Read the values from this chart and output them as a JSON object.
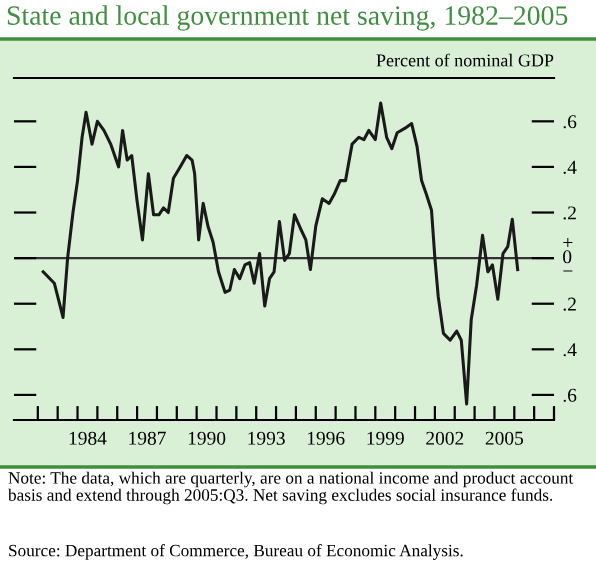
{
  "chart_data": {
    "type": "line",
    "title": "State and local government net saving, 1982–2005",
    "ylabel": "Percent of nominal GDP",
    "x": [
      1981.77,
      1982.33,
      1982.77,
      1983.0,
      1983.27,
      1983.5,
      1983.73,
      1983.93,
      1984.23,
      1984.5,
      1984.83,
      1985.17,
      1985.57,
      1985.77,
      1986.0,
      1986.23,
      1986.5,
      1986.77,
      1987.07,
      1987.33,
      1987.6,
      1987.83,
      1988.07,
      1988.33,
      1988.67,
      1989.0,
      1989.27,
      1989.4,
      1989.6,
      1989.83,
      1990.07,
      1990.33,
      1990.6,
      1990.93,
      1991.17,
      1991.4,
      1991.67,
      1991.93,
      1992.17,
      1992.4,
      1992.67,
      1992.93,
      1993.17,
      1993.4,
      1993.67,
      1993.93,
      1994.17,
      1994.43,
      1994.73,
      1995.0,
      1995.23,
      1995.5,
      1995.83,
      1996.17,
      1996.43,
      1996.73,
      1997.0,
      1997.33,
      1997.67,
      1997.93,
      1998.17,
      1998.5,
      1998.77,
      1999.07,
      1999.33,
      1999.6,
      2000.0,
      2000.33,
      2000.6,
      2000.83,
      2001.07,
      2001.33,
      2001.5,
      2001.67,
      2001.93,
      2002.27,
      2002.6,
      2002.83,
      2003.1,
      2003.33,
      2003.6,
      2003.9,
      2004.17,
      2004.4,
      2004.67,
      2004.93,
      2005.17,
      2005.4,
      2005.67
    ],
    "series": [
      {
        "color": "#1a1a1a",
        "values": [
          -0.06,
          -0.11,
          -0.26,
          0.0,
          0.2,
          0.34,
          0.53,
          0.64,
          0.5,
          0.6,
          0.56,
          0.5,
          0.4,
          0.56,
          0.43,
          0.45,
          0.25,
          0.08,
          0.37,
          0.19,
          0.19,
          0.22,
          0.2,
          0.35,
          0.4,
          0.45,
          0.43,
          0.37,
          0.08,
          0.24,
          0.14,
          0.07,
          -0.06,
          -0.15,
          -0.14,
          -0.05,
          -0.09,
          -0.03,
          -0.02,
          -0.11,
          0.02,
          -0.21,
          -0.09,
          -0.06,
          0.16,
          -0.01,
          0.02,
          0.19,
          0.13,
          0.08,
          -0.05,
          0.14,
          0.26,
          0.24,
          0.28,
          0.34,
          0.34,
          0.5,
          0.53,
          0.52,
          0.56,
          0.52,
          0.68,
          0.53,
          0.48,
          0.55,
          0.57,
          0.59,
          0.49,
          0.34,
          0.28,
          0.21,
          0.0,
          -0.17,
          -0.33,
          -0.36,
          -0.32,
          -0.36,
          -0.64,
          -0.27,
          -0.12,
          0.1,
          -0.06,
          -0.03,
          -0.18,
          0.02,
          0.05,
          0.17,
          -0.05
        ]
      }
    ],
    "xlim": [
      1980.3,
      2007.5
    ],
    "xticks": [
      {
        "value": 1981.5,
        "label": null
      },
      {
        "value": 1982.5,
        "label": null
      },
      {
        "value": 1983.5,
        "label": null
      },
      {
        "value": 1984.5,
        "label": null
      },
      {
        "value": 1985.5,
        "label": null
      },
      {
        "value": 1986.5,
        "label": null
      },
      {
        "value": 1987.5,
        "label": null
      },
      {
        "value": 1988.5,
        "label": null
      },
      {
        "value": 1989.5,
        "label": null
      },
      {
        "value": 1990.5,
        "label": null
      },
      {
        "value": 1991.5,
        "label": null
      },
      {
        "value": 1992.5,
        "label": null
      },
      {
        "value": 1993.5,
        "label": null
      },
      {
        "value": 1994.5,
        "label": null
      },
      {
        "value": 1995.5,
        "label": null
      },
      {
        "value": 1996.5,
        "label": null
      },
      {
        "value": 1997.5,
        "label": null
      },
      {
        "value": 1998.5,
        "label": null
      },
      {
        "value": 1999.5,
        "label": null
      },
      {
        "value": 2000.5,
        "label": null
      },
      {
        "value": 2001.5,
        "label": null
      },
      {
        "value": 2002.5,
        "label": null
      },
      {
        "value": 2003.5,
        "label": null
      },
      {
        "value": 2004.5,
        "label": null
      },
      {
        "value": 2005.5,
        "label": null
      },
      {
        "value": 2006.5,
        "label": null
      },
      {
        "value": 2007.5,
        "label": null
      },
      1984,
      1987,
      1990,
      1993,
      1996,
      1999,
      2002,
      2005
    ],
    "ylim": [
      -0.71,
      0.79
    ],
    "yticks": [
      {
        "value": -0.6,
        "label": ".6"
      },
      {
        "value": -0.4,
        "label": ".4"
      },
      {
        "value": -0.2,
        "label": ".2"
      },
      {
        "value": 0,
        "label": "+\n0\n−"
      },
      {
        "value": 0.2,
        "label": ".2"
      },
      {
        "value": 0.4,
        "label": ".4"
      },
      {
        "value": 0.6,
        "label": ".6"
      }
    ],
    "ref_lines": [
      {
        "axis": "y",
        "value": 0,
        "color": "#333333"
      }
    ],
    "grid": false,
    "legend": false,
    "annotations": [
      "Note: The data, which are quarterly, are on a national income and product account basis and extend through 2005:Q3. Net saving excludes social insurance funds.",
      "Source: Department of Commerce, Bureau of Economic Analysis."
    ]
  }
}
